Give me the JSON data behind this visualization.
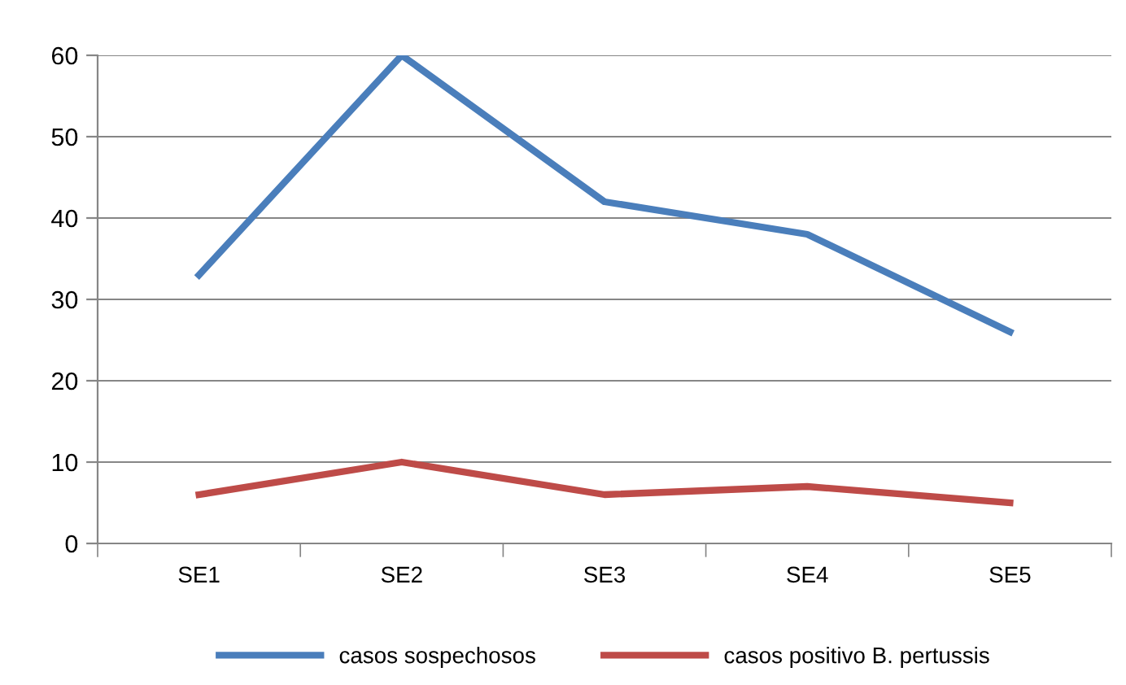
{
  "chart_data": {
    "type": "line",
    "categories": [
      "SE1",
      "SE2",
      "SE3",
      "SE4",
      "SE5"
    ],
    "series": [
      {
        "name": "casos sospechosos",
        "color": "#4a7ebb",
        "values": [
          33,
          60,
          42,
          38,
          26
        ]
      },
      {
        "name": "casos positivo B. pertussis",
        "color": "#be4b48",
        "values": [
          6,
          10,
          6,
          7,
          5
        ]
      }
    ],
    "ylim": [
      0,
      60
    ],
    "yticks": [
      0,
      10,
      20,
      30,
      40,
      50,
      60
    ],
    "grid": "y",
    "legend": "bottom",
    "marker": "none",
    "line_style": "solid"
  }
}
